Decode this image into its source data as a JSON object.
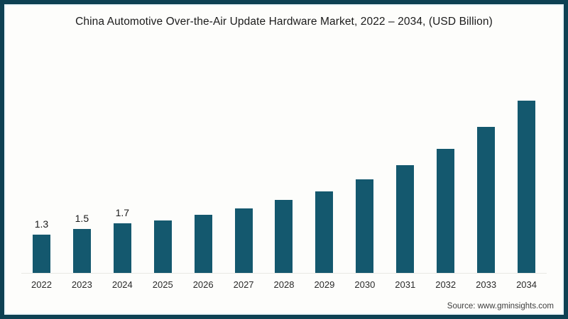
{
  "chart_data": {
    "type": "bar",
    "title": "China Automotive Over-the-Air Update Hardware Market, 2022 – 2034, (USD Billion)",
    "categories": [
      "2022",
      "2023",
      "2024",
      "2025",
      "2026",
      "2027",
      "2028",
      "2029",
      "2030",
      "2031",
      "2032",
      "2033",
      "2034"
    ],
    "values": [
      1.3,
      1.5,
      1.7,
      1.8,
      2.0,
      2.2,
      2.5,
      2.8,
      3.2,
      3.7,
      4.25,
      5.0,
      5.9
    ],
    "value_labels": [
      "1.3",
      "1.5",
      "1.7",
      "",
      "",
      "",
      "",
      "",
      "",
      "",
      "",
      "",
      ""
    ],
    "xlabel": "",
    "ylabel": "",
    "ylim": [
      0,
      6.2
    ],
    "grid": false,
    "legend": false,
    "bar_color": "#14586e"
  },
  "source": "Source: www.gminsights.com",
  "colors": {
    "bar": "#14586e",
    "frame_border": "#0e4153",
    "axis_line": "#e8e8e4",
    "title_text": "#1b1b1b",
    "tick_text": "#2a2a2a",
    "source_text": "#3d3d3d",
    "background": "#fdfdfb"
  }
}
